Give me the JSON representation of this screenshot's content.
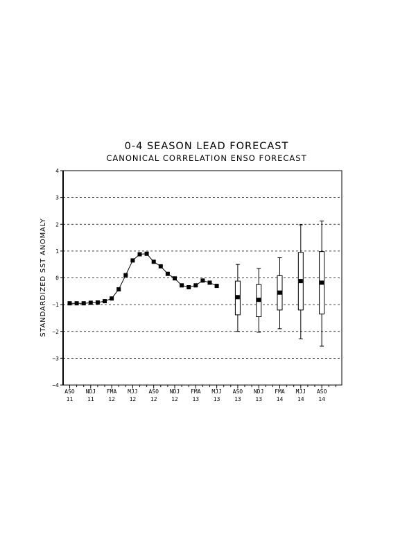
{
  "chart_data": {
    "type": "line",
    "title": "0-4 SEASON LEAD FORECAST",
    "subtitle": "CANONICAL CORRELATION ENSO FORECAST",
    "ylabel": "STANDARDIZED SST ANOMALY",
    "xlabel": "",
    "ylim": [
      -4,
      4
    ],
    "yticks": [
      -4,
      -3,
      -2,
      -1,
      0,
      1,
      2,
      3,
      4
    ],
    "grid": "horizontal dashed at y = 3, 2, 1, 0, -1, -2, -3",
    "x_tick_labels": [
      {
        "season": "ASO",
        "year": "11"
      },
      {
        "season": "NDJ",
        "year": "11"
      },
      {
        "season": "FMA",
        "year": "12"
      },
      {
        "season": "MJJ",
        "year": "12"
      },
      {
        "season": "ASO",
        "year": "12"
      },
      {
        "season": "NDJ",
        "year": "12"
      },
      {
        "season": "FMA",
        "year": "13"
      },
      {
        "season": "MJJ",
        "year": "13"
      },
      {
        "season": "ASO",
        "year": "13"
      },
      {
        "season": "NDJ",
        "year": "13"
      },
      {
        "season": "FMA",
        "year": "14"
      },
      {
        "season": "MJJ",
        "year": "14"
      },
      {
        "season": "ASO",
        "year": "14"
      }
    ],
    "x_count": 39,
    "observed": {
      "x": [
        0,
        1,
        2,
        3,
        4,
        5,
        6,
        7,
        8,
        9,
        10,
        11,
        12,
        13,
        14,
        15,
        16,
        17,
        18,
        19,
        20,
        21,
        22
      ],
      "y": [
        -0.95,
        -0.95,
        -0.95,
        -0.93,
        -0.92,
        -0.87,
        -0.77,
        -0.43,
        0.1,
        0.65,
        0.88,
        0.9,
        0.6,
        0.43,
        0.15,
        -0.02,
        -0.28,
        -0.35,
        -0.28,
        -0.1,
        -0.18,
        -0.3,
        null
      ]
    },
    "forecast": [
      {
        "x": 24,
        "center": -0.72,
        "box_low": -1.38,
        "box_high": -0.12,
        "whisker_low": -2.0,
        "whisker_high": 0.5
      },
      {
        "x": 27,
        "center": -0.82,
        "box_low": -1.45,
        "box_high": -0.25,
        "whisker_low": -2.03,
        "whisker_high": 0.35
      },
      {
        "x": 30,
        "center": -0.55,
        "box_low": -1.2,
        "box_high": 0.08,
        "whisker_low": -1.9,
        "whisker_high": 0.75
      },
      {
        "x": 33,
        "center": -0.12,
        "box_low": -1.2,
        "box_high": 0.95,
        "whisker_low": -2.28,
        "whisker_high": 1.98
      },
      {
        "x": 36,
        "center": -0.18,
        "box_low": -1.35,
        "box_high": 0.98,
        "whisker_low": -2.55,
        "whisker_high": 2.12
      }
    ]
  }
}
